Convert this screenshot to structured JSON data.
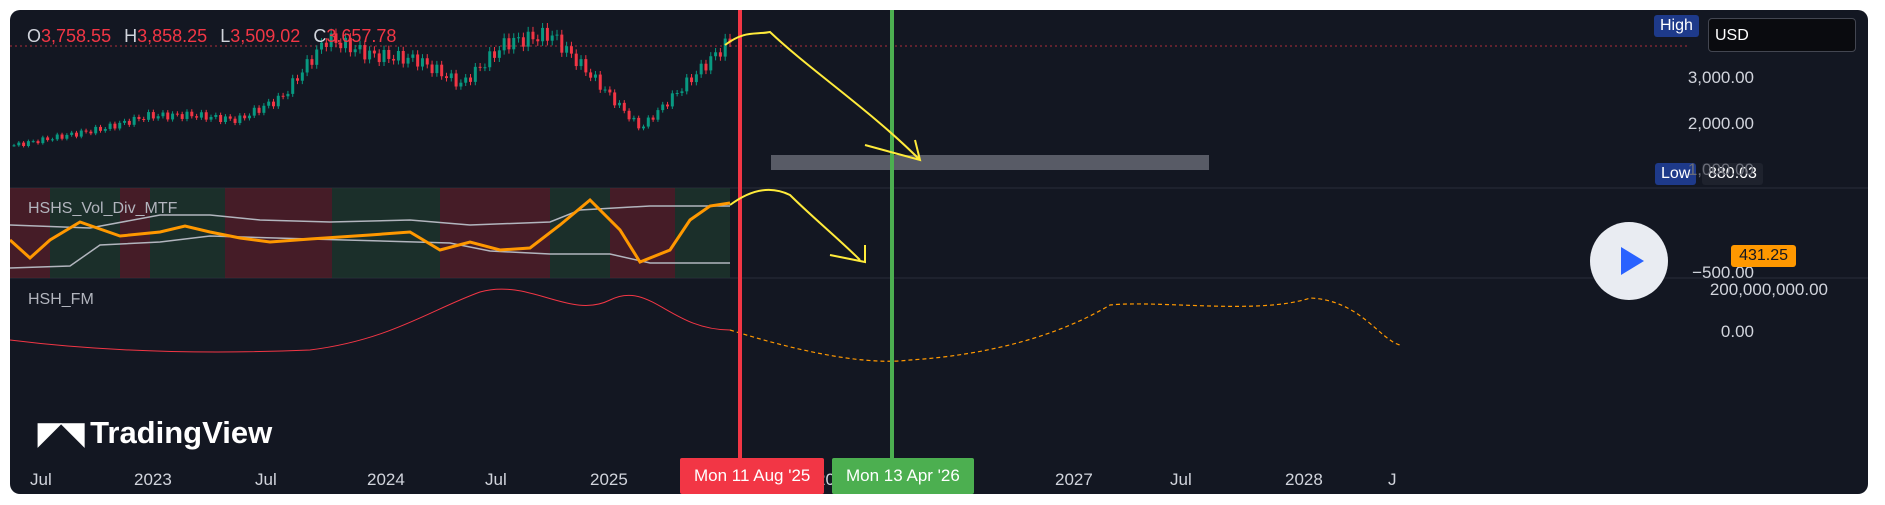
{
  "ohlc": {
    "o_label": "O",
    "o": "3,758.55",
    "h_label": "H",
    "h": "3,858.25",
    "l_label": "L",
    "l": "3,509.02",
    "c_label": "C",
    "c": "3,657.78"
  },
  "currency": "USD",
  "high_tag": "High",
  "low_tag": "Low",
  "low_value": "880.03",
  "indicator_value": "431.25",
  "price_axis": [
    "3,000.00",
    "2,000.00",
    "1,000.00"
  ],
  "osc_axis": [
    "−500.00"
  ],
  "fm_axis": [
    "200,000,000.00",
    "0.00"
  ],
  "panes": {
    "osc_name": "HSHS_Vol_Div_MTF",
    "fm_name": "HSH_FM"
  },
  "time_axis": [
    "Jul",
    "2023",
    "Jul",
    "2024",
    "Jul",
    "2025",
    "20",
    "2027",
    "Jul",
    "2028",
    "J"
  ],
  "markers": {
    "red_date": "Mon 11 Aug '25",
    "green_date": "Mon 13 Apr '26"
  },
  "logo": "TradingView",
  "colors": {
    "up": "#089981",
    "down": "#f23645",
    "accent": "#2962ff",
    "annotation": "#ffeb3b",
    "osc": "#ff9800",
    "green_line": "#4caf50",
    "red_line": "#f23645"
  },
  "icons": {
    "play": "play-icon",
    "logo": "tradingview-logo-icon"
  },
  "chart_data": {
    "type": "candlestick",
    "series": [
      {
        "name": "price_close_approx",
        "x": [
          "2022-06",
          "2022-09",
          "2023-01",
          "2023-04",
          "2023-07",
          "2023-10",
          "2024-01",
          "2024-03",
          "2024-05",
          "2024-07",
          "2024-09",
          "2024-11",
          "2024-12",
          "2025-02",
          "2025-04",
          "2025-06",
          "2025-08"
        ],
        "values": [
          1150,
          1350,
          1550,
          1850,
          1870,
          1750,
          2300,
          3700,
          3300,
          3200,
          2600,
          3600,
          3800,
          2700,
          1550,
          2600,
          3650
        ]
      }
    ],
    "ylim": [
      -200,
      4000
    ],
    "annotation": "projected decline"
  }
}
